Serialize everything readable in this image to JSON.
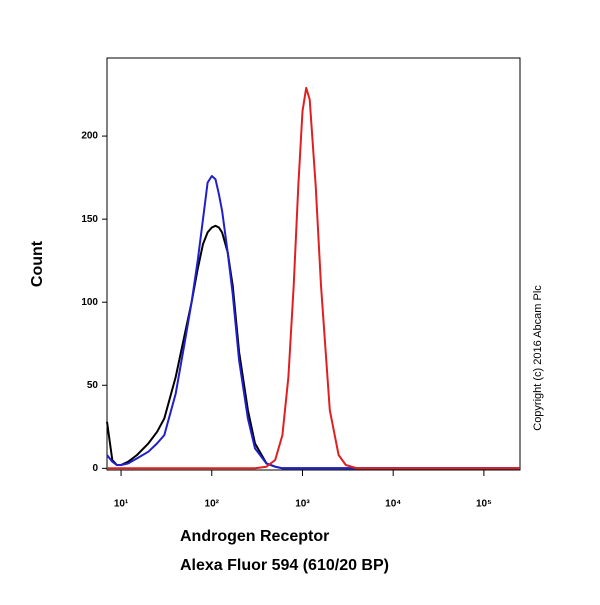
{
  "chart_data": {
    "type": "line",
    "ylabel": "Count",
    "xlabel_line1": "Androgen Receptor",
    "xlabel_line2": "Alexa Fluor 594 (610/20 BP)",
    "annotation": "Copyright (c) 2016 Abcam Plc",
    "log_x": true,
    "xlim": [
      7,
      250000
    ],
    "ylim": [
      -1,
      247
    ],
    "xticks": [
      {
        "value": 10,
        "label": "10¹"
      },
      {
        "value": 100,
        "label": "10²"
      },
      {
        "value": 1000,
        "label": "10³"
      },
      {
        "value": 10000,
        "label": "10⁴"
      },
      {
        "value": 100000,
        "label": "10⁵"
      }
    ],
    "yticks": [
      0,
      50,
      100,
      150,
      200
    ],
    "x": [
      7,
      8,
      9,
      10,
      12,
      15,
      20,
      25,
      30,
      40,
      50,
      60,
      70,
      80,
      90,
      100,
      110,
      120,
      130,
      150,
      170,
      200,
      250,
      300,
      400,
      500,
      600,
      700,
      800,
      900,
      1000,
      1100,
      1200,
      1400,
      1600,
      2000,
      2500,
      3000,
      4000,
      6000,
      10000,
      30000,
      100000,
      250000
    ],
    "series": [
      {
        "color": "#000000",
        "values": [
          28,
          5,
          2,
          2,
          4,
          8,
          15,
          22,
          30,
          55,
          80,
          100,
          120,
          135,
          142,
          145,
          146,
          145,
          142,
          130,
          110,
          70,
          35,
          15,
          3,
          1,
          0,
          0,
          0,
          0,
          0,
          0,
          0,
          0,
          0,
          0,
          0,
          0,
          0,
          0,
          0,
          0,
          0,
          0
        ]
      },
      {
        "color": "#1f1fcc",
        "values": [
          8,
          4,
          2,
          2,
          3,
          6,
          10,
          15,
          20,
          45,
          75,
          100,
          125,
          150,
          172,
          176,
          174,
          165,
          155,
          130,
          105,
          65,
          30,
          12,
          3,
          1,
          0,
          0,
          0,
          0,
          0,
          0,
          0,
          0,
          0,
          0,
          0,
          0,
          0,
          0,
          0,
          0,
          0,
          0
        ]
      },
      {
        "color": "#e02020",
        "values": [
          0,
          0,
          0,
          0,
          0,
          0,
          0,
          0,
          0,
          0,
          0,
          0,
          0,
          0,
          0,
          0,
          0,
          0,
          0,
          0,
          0,
          0,
          0,
          0,
          1,
          5,
          20,
          55,
          110,
          170,
          215,
          229,
          222,
          170,
          110,
          35,
          8,
          2,
          0,
          0,
          0,
          0,
          0,
          0
        ]
      }
    ]
  }
}
